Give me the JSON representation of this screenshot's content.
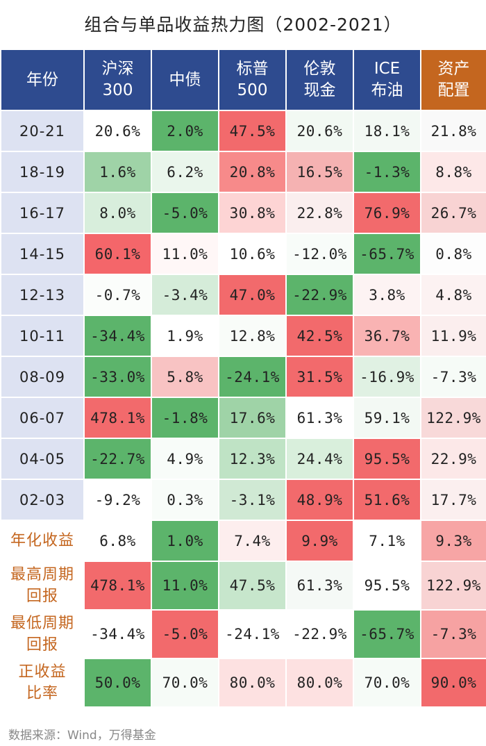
{
  "title": "组合与单品收益热力图（2002-2021）",
  "footer": "数据来源：Wind，万得基金",
  "colors": {
    "header_blue": "#2e4b8f",
    "header_orange": "#c4661f",
    "period_label_bg": "#dde2f2",
    "stat_label_text": "#c4661f",
    "low_green": "#5ab66c",
    "mid_white": "#ffffff",
    "high_red": "#f4676b"
  },
  "header": {
    "row_label": "年份",
    "columns": [
      {
        "line1": "沪深",
        "line2": "300"
      },
      {
        "line1": "中债",
        "line2": ""
      },
      {
        "line1": "标普",
        "line2": "500"
      },
      {
        "line1": "伦敦",
        "line2": "现金"
      },
      {
        "line1": "ICE",
        "line2": "布油"
      },
      {
        "line1": "资产",
        "line2": "配置"
      }
    ]
  },
  "chart_data": {
    "type": "heatmap",
    "title": "组合与单品收益热力图（2002-2021）",
    "columns": [
      "沪深300",
      "中债",
      "标普500",
      "伦敦现金",
      "ICE布油",
      "资产配置"
    ],
    "color_scale": "per-column, green = lower value, white = middle, red = higher value",
    "rows": [
      {
        "label": "20-21",
        "kind": "period",
        "values": [
          20.6,
          2.0,
          47.5,
          20.6,
          18.1,
          21.8
        ],
        "display": [
          "20.6%",
          "2.0%",
          "47.5%",
          "20.6%",
          "18.1%",
          "21.8%"
        ]
      },
      {
        "label": "18-19",
        "kind": "period",
        "values": [
          1.6,
          6.2,
          20.8,
          16.5,
          -1.3,
          8.8
        ],
        "display": [
          "1.6%",
          "6.2%",
          "20.8%",
          "16.5%",
          "-1.3%",
          "8.8%"
        ]
      },
      {
        "label": "16-17",
        "kind": "period",
        "values": [
          8.0,
          -5.0,
          30.8,
          22.8,
          76.9,
          26.7
        ],
        "display": [
          "8.0%",
          "-5.0%",
          "30.8%",
          "22.8%",
          "76.9%",
          "26.7%"
        ]
      },
      {
        "label": "14-15",
        "kind": "period",
        "values": [
          60.1,
          11.0,
          10.6,
          -12.0,
          -65.7,
          0.8
        ],
        "display": [
          "60.1%",
          "11.0%",
          "10.6%",
          "-12.0%",
          "-65.7%",
          "0.8%"
        ]
      },
      {
        "label": "12-13",
        "kind": "period",
        "values": [
          -0.7,
          -3.4,
          47.0,
          -22.9,
          3.8,
          4.8
        ],
        "display": [
          "-0.7%",
          "-3.4%",
          "47.0%",
          "-22.9%",
          "3.8%",
          "4.8%"
        ]
      },
      {
        "label": "10-11",
        "kind": "period",
        "values": [
          -34.4,
          1.9,
          12.8,
          42.5,
          36.7,
          11.9
        ],
        "display": [
          "-34.4%",
          "1.9%",
          "12.8%",
          "42.5%",
          "36.7%",
          "11.9%"
        ]
      },
      {
        "label": "08-09",
        "kind": "period",
        "values": [
          -33.0,
          5.8,
          -24.1,
          31.5,
          -16.9,
          -7.3
        ],
        "display": [
          "-33.0%",
          "5.8%",
          "-24.1%",
          "31.5%",
          "-16.9%",
          "-7.3%"
        ]
      },
      {
        "label": "06-07",
        "kind": "period",
        "values": [
          478.1,
          -1.8,
          17.6,
          61.3,
          59.1,
          122.9
        ],
        "display": [
          "478.1%",
          "-1.8%",
          "17.6%",
          "61.3%",
          "59.1%",
          "122.9%"
        ]
      },
      {
        "label": "04-05",
        "kind": "period",
        "values": [
          -22.7,
          4.9,
          12.3,
          24.4,
          95.5,
          22.9
        ],
        "display": [
          "-22.7%",
          "4.9%",
          "12.3%",
          "24.4%",
          "95.5%",
          "22.9%"
        ]
      },
      {
        "label": "02-03",
        "kind": "period",
        "values": [
          -9.2,
          0.3,
          -3.1,
          48.9,
          51.6,
          17.7
        ],
        "display": [
          "-9.2%",
          "0.3%",
          "-3.1%",
          "48.9%",
          "51.6%",
          "17.7%"
        ]
      },
      {
        "label": "年化收益",
        "kind": "stat",
        "values": [
          6.8,
          1.0,
          7.4,
          9.9,
          7.1,
          9.3
        ],
        "display": [
          "6.8%",
          "1.0%",
          "7.4%",
          "9.9%",
          "7.1%",
          "9.3%"
        ]
      },
      {
        "label": "最高周期回报",
        "line1": "最高周期",
        "line2": "回报",
        "kind": "stat",
        "values": [
          478.1,
          11.0,
          47.5,
          61.3,
          95.5,
          122.9
        ],
        "display": [
          "478.1%",
          "11.0%",
          "47.5%",
          "61.3%",
          "95.5%",
          "122.9%"
        ]
      },
      {
        "label": "最低周期回报",
        "line1": "最低周期",
        "line2": "回报",
        "kind": "stat",
        "values": [
          -34.4,
          -5.0,
          -24.1,
          -22.9,
          -65.7,
          -7.3
        ],
        "display": [
          "-34.4%",
          "-5.0%",
          "-24.1%",
          "-22.9%",
          "-65.7%",
          "-7.3%"
        ]
      },
      {
        "label": "正收益比率",
        "line1": "正收益",
        "line2": "比率",
        "kind": "stat",
        "values": [
          50.0,
          70.0,
          80.0,
          80.0,
          70.0,
          90.0
        ],
        "display": [
          "50.0%",
          "70.0%",
          "80.0%",
          "80.0%",
          "70.0%",
          "90.0%"
        ]
      }
    ],
    "cell_colors": [
      [
        "#ffffff",
        "#5cb46b",
        "#f26a6c",
        "#f2f9f3",
        "#f3f9f4",
        "#f9f9f9"
      ],
      [
        "#9fd3a7",
        "#eaf6ec",
        "#f78a8a",
        "#f5b2b2",
        "#5cb46b",
        "#fde8e8"
      ],
      [
        "#d8eedc",
        "#5cb46b",
        "#fdd4d4",
        "#faeeee",
        "#f26a6c",
        "#f8d3d3"
      ],
      [
        "#f4666a",
        "#fff7f7",
        "#ffffff",
        "#f8fcf9",
        "#5cb46b",
        "#fdfdfd"
      ],
      [
        "#fbfdfb",
        "#d5ecd9",
        "#f26a6c",
        "#5cb46b",
        "#fdf3f3",
        "#fcf2f2"
      ],
      [
        "#5cb46b",
        "#ffffff",
        "#f9fcf9",
        "#f26a6c",
        "#f9b3b3",
        "#fbeeee"
      ],
      [
        "#5cb46b",
        "#f8c3c3",
        "#5cb46b",
        "#f26a6c",
        "#e0f1e3",
        "#f6fbf7"
      ],
      [
        "#f26a6c",
        "#5cb46b",
        "#9fd3a7",
        "#ffffff",
        "#f3f9f4",
        "#f8d9d9"
      ],
      [
        "#5cb46b",
        "#f8fcf9",
        "#bfe3c5",
        "#d9efdc",
        "#f26a6c",
        "#fce8e8"
      ],
      [
        "#ffffff",
        "#f8fcf9",
        "#d0e9d4",
        "#f26a6c",
        "#f26a6c",
        "#fbefef"
      ],
      [
        "#ffffff",
        "#5cb46b",
        "#fdeeee",
        "#f26a6c",
        "#ffffff",
        "#f7a5a5"
      ],
      [
        "#f26a6c",
        "#5cb46b",
        "#c7e6cc",
        "#f5f9f6",
        "#ffffff",
        "#f8d3d3"
      ],
      [
        "#ffffff",
        "#f26a6c",
        "#ffffff",
        "#ffffff",
        "#5cb46b",
        "#f6a2a2"
      ],
      [
        "#5cb46b",
        "#f6fbf7",
        "#fde1e1",
        "#fde1e1",
        "#f6fbf7",
        "#f26a6c"
      ]
    ]
  }
}
